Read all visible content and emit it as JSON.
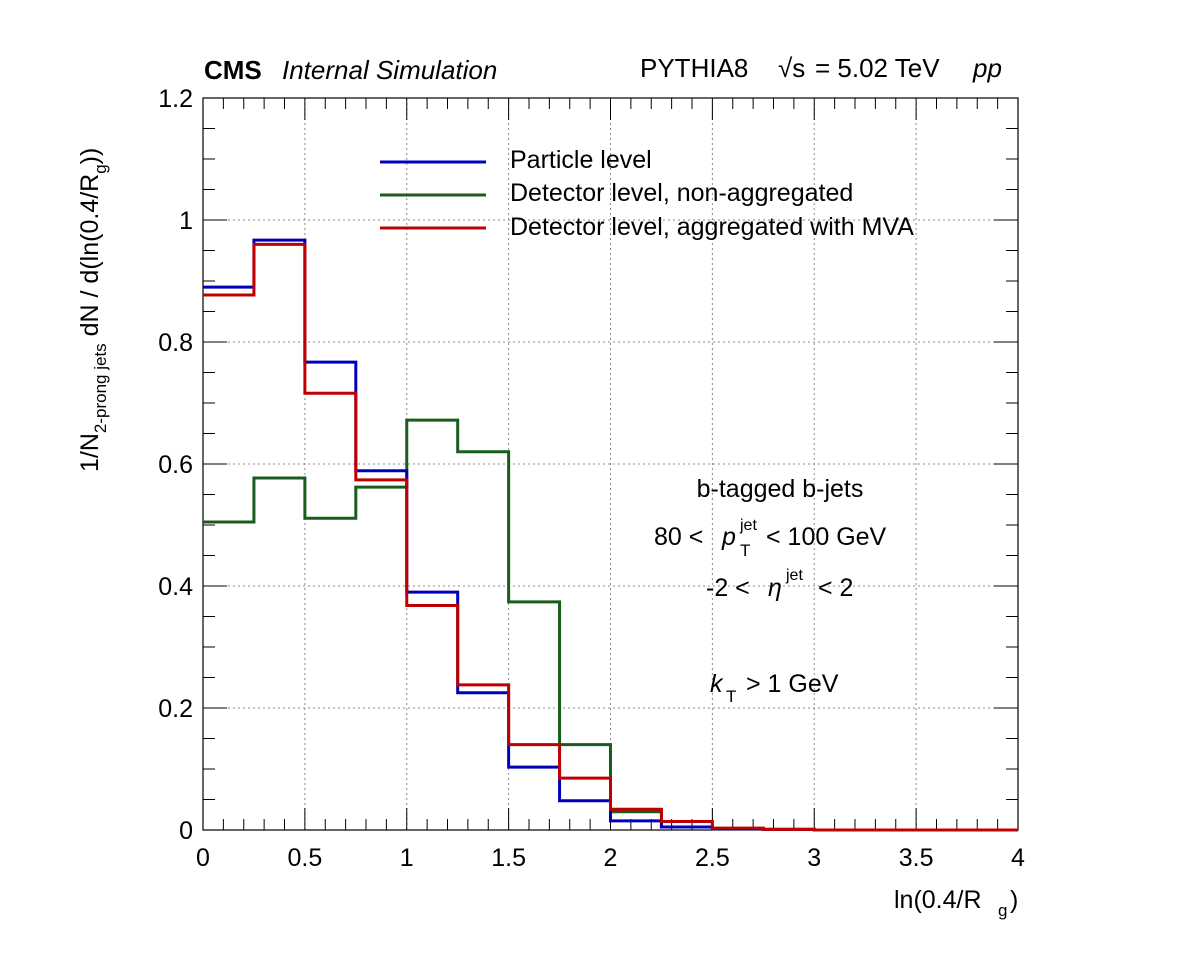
{
  "header": {
    "experiment": "CMS",
    "status": "Internal Simulation",
    "generator": "PYTHIA8",
    "sqrt_s_symbol": "√s",
    "energy_text": "= 5.02 TeV",
    "system": "pp"
  },
  "annotations": {
    "sample": "b-tagged b-jets",
    "pt_left": "80 <",
    "pt_var": "p",
    "pt_sub": "T",
    "pt_sup": "jet",
    "pt_right": "< 100 GeV",
    "eta_left": "-2 <",
    "eta_var": "η",
    "eta_sup": "jet",
    "eta_right": "< 2",
    "kt_var": "k",
    "kt_sub": "T",
    "kt_right": "> 1 GeV"
  },
  "axes": {
    "x_title_main": "ln(0.4/R",
    "x_title_sub": "g",
    "x_title_end": ")",
    "y_title_part1": "1/N",
    "y_title_sub1": "2-prong jets",
    "y_title_part2": " dN / d(ln(0.4/R",
    "y_title_sub2": "g",
    "y_title_part3": "))"
  },
  "chart_data": {
    "type": "line",
    "histogram": true,
    "bin_edges": [
      0,
      0.25,
      0.5,
      0.75,
      1.0,
      1.25,
      1.5,
      1.75,
      2.0,
      2.25,
      2.5,
      2.75,
      3.0,
      3.25,
      3.5,
      3.75,
      4.0
    ],
    "xlim": [
      0,
      4
    ],
    "ylim": [
      0,
      1.2
    ],
    "x_ticks": [
      0,
      0.5,
      1,
      1.5,
      2,
      2.5,
      3,
      3.5,
      4
    ],
    "x_tick_labels": [
      "0",
      "0.5",
      "1",
      "1.5",
      "2",
      "2.5",
      "3",
      "3.5",
      "4"
    ],
    "y_ticks": [
      0,
      0.2,
      0.4,
      0.6,
      0.8,
      1,
      1.2
    ],
    "y_tick_labels": [
      "0",
      "0.2",
      "0.4",
      "0.6",
      "0.8",
      "1",
      "1.2"
    ],
    "grid": true,
    "legend_position": "top-center",
    "series": [
      {
        "name": "Particle level",
        "color": "#0000bb",
        "values": [
          0.89,
          0.967,
          0.767,
          0.589,
          0.39,
          0.225,
          0.103,
          0.048,
          0.015,
          0.005,
          0.002,
          0.001,
          0,
          0,
          0,
          0
        ]
      },
      {
        "name": "Detector level, non-aggregated",
        "color": "#1a5c1a",
        "values": [
          0.505,
          0.577,
          0.511,
          0.562,
          0.672,
          0.62,
          0.374,
          0.14,
          0.03,
          0.005,
          0.002,
          0.001,
          0,
          0,
          0,
          0
        ]
      },
      {
        "name": "Detector level, aggregated with MVA",
        "color": "#c00000",
        "values": [
          0.877,
          0.96,
          0.716,
          0.574,
          0.368,
          0.238,
          0.14,
          0.085,
          0.034,
          0.014,
          0.003,
          0.001,
          0,
          0,
          0,
          0
        ]
      }
    ]
  }
}
